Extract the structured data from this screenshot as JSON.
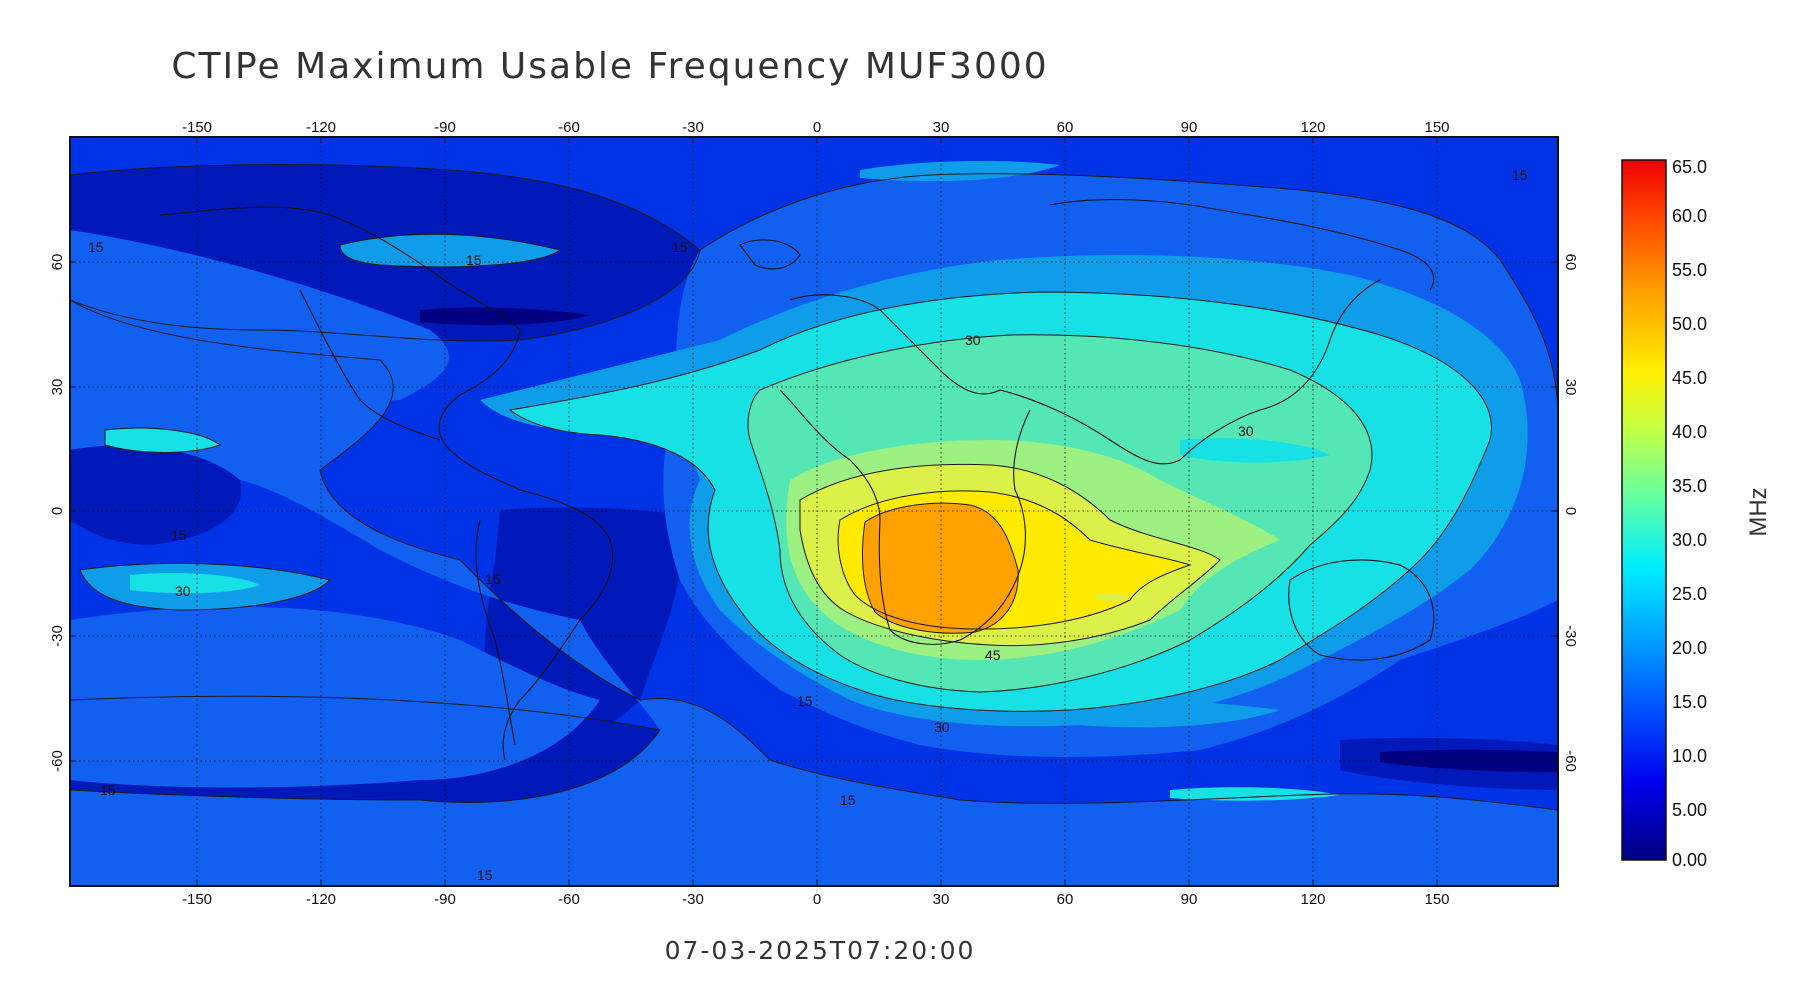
{
  "title": "CTIPe Maximum Usable Frequency MUF3000",
  "timestamp": "07-03-2025T07:20:00",
  "colorbar": {
    "unit_label": "MHz",
    "tick_labels": [
      "65.0",
      "60.0",
      "55.0",
      "50.0",
      "45.0",
      "40.0",
      "35.0",
      "30.0",
      "25.0",
      "20.0",
      "15.0",
      "10.0",
      "5.00",
      "0.00"
    ],
    "range": [
      0,
      65
    ]
  },
  "axes": {
    "longitude_ticks": [
      "-150",
      "-120",
      "-90",
      "-60",
      "-30",
      "0",
      "30",
      "60",
      "90",
      "120",
      "150"
    ],
    "latitude_ticks": [
      "60",
      "30",
      "0",
      "-30",
      "-60"
    ]
  },
  "contour_labels": [
    "15",
    "15",
    "15",
    "15",
    "30",
    "15",
    "15",
    "30",
    "30",
    "45",
    "30",
    "15",
    "15",
    "15",
    "15"
  ],
  "levels": [
    {
      "name": "0-5",
      "color": "#000080"
    },
    {
      "name": "5-10",
      "color": "#0019b8"
    },
    {
      "name": "10-15",
      "color": "#0033e6"
    },
    {
      "name": "15-20",
      "color": "#1160f0"
    },
    {
      "name": "20-25",
      "color": "#0f9dea"
    },
    {
      "name": "25-30",
      "color": "#17e1e4"
    },
    {
      "name": "30-35",
      "color": "#55e6b6"
    },
    {
      "name": "35-40",
      "color": "#9df082"
    },
    {
      "name": "40-45",
      "color": "#dcf04a"
    },
    {
      "name": "45-50",
      "color": "#ffea00"
    },
    {
      "name": "50-55",
      "color": "#ffa100"
    }
  ]
}
